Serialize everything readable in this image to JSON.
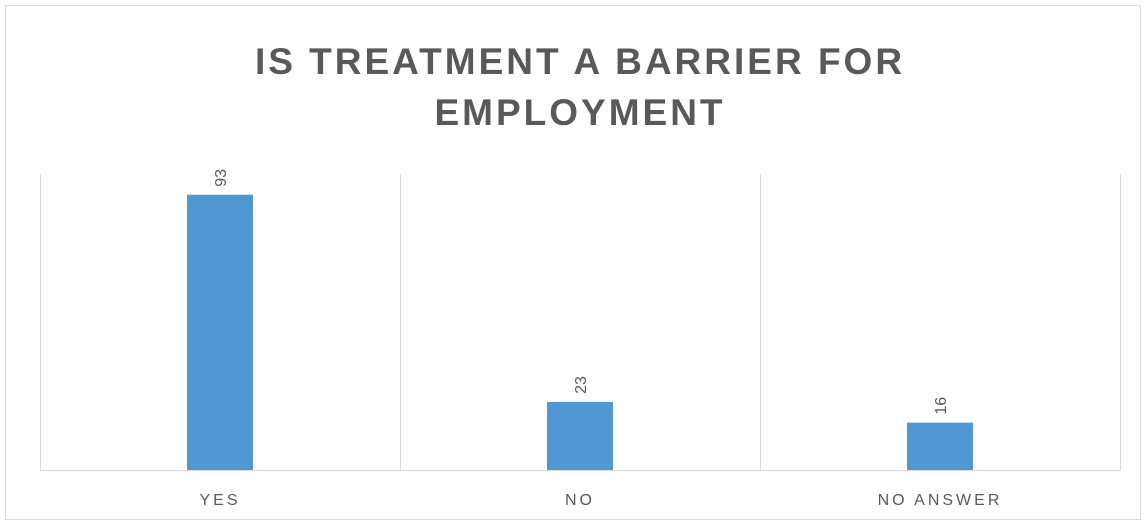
{
  "chart_data": {
    "type": "bar",
    "title": "IS TREATMENT A BARRIER FOR EMPLOYMENT",
    "title_lines": [
      "IS TREATMENT A BARRIER FOR",
      "EMPLOYMENT"
    ],
    "categories": [
      "YES",
      "NO",
      "NO ANSWER"
    ],
    "values": [
      93,
      23,
      16
    ],
    "data_labels": [
      "93",
      "23",
      "16"
    ],
    "xlabel": "",
    "ylabel": "",
    "ylim": [
      0,
      100
    ],
    "grid": "vertical-category-separators",
    "legend": "none",
    "data_label_orientation": "vertical"
  },
  "colors": {
    "bar": "#5097d3",
    "grid": "#d9d9d9",
    "text": "#595959",
    "title": "#595959"
  }
}
